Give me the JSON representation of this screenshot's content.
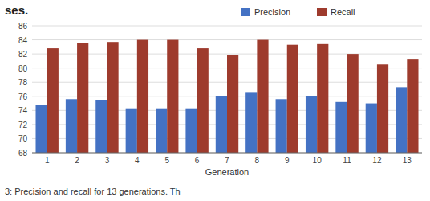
{
  "chart_data": {
    "type": "bar",
    "title": "ses.",
    "annotations": [
      "3: Precision and recall for 13 generations.  Th"
    ],
    "x_label": "Generation",
    "categories": [
      1,
      2,
      3,
      4,
      5,
      6,
      7,
      8,
      9,
      10,
      11,
      12,
      13
    ],
    "series": [
      {
        "name": "Precision",
        "color": "#4472C4",
        "values": [
          74.8,
          75.6,
          75.5,
          74.3,
          74.3,
          74.3,
          76.0,
          76.5,
          75.6,
          76.0,
          75.2,
          75.0,
          77.3
        ]
      },
      {
        "name": "Recall",
        "color": "#9E3B2D",
        "values": [
          82.8,
          83.6,
          83.7,
          84.0,
          84.0,
          82.8,
          81.8,
          84.0,
          83.3,
          83.4,
          82.0,
          80.5,
          81.2
        ]
      }
    ],
    "ylim": [
      68,
      86
    ],
    "yticks": [
      68,
      70,
      72,
      74,
      76,
      78,
      80,
      82,
      84,
      86
    ],
    "grid": true,
    "legend": "top"
  }
}
